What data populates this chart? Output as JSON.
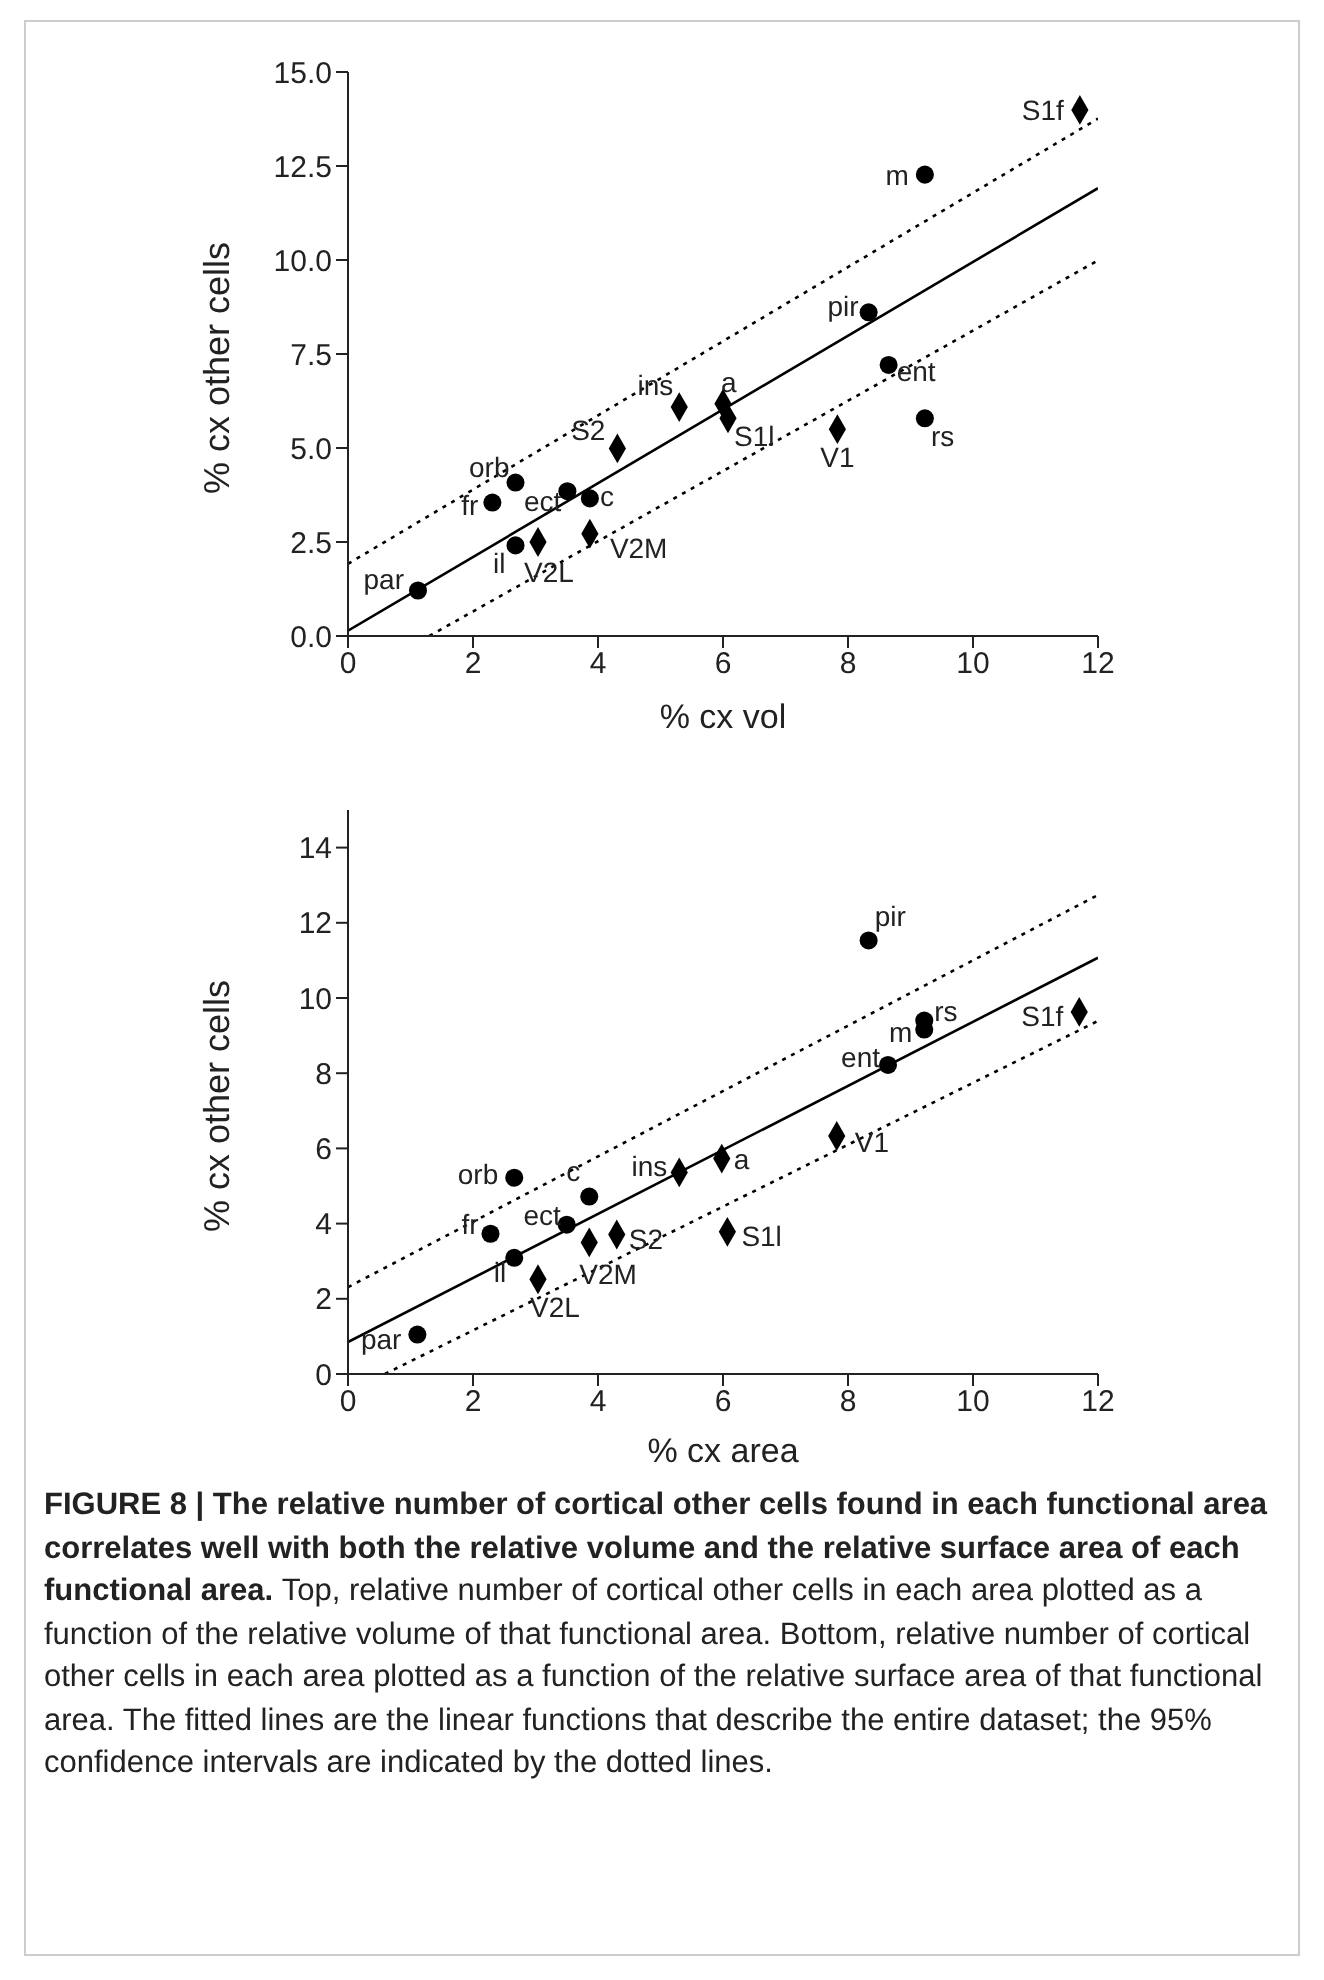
{
  "chart_data": [
    {
      "type": "scatter",
      "xlabel": "% cx vol",
      "ylabel": "% cx other cells",
      "xlim": [
        0,
        12
      ],
      "xticks": [
        0,
        2,
        4,
        6,
        8,
        10,
        12
      ],
      "ylim": [
        0,
        15
      ],
      "yticks": [
        {
          "value": 0,
          "label": "0.0"
        },
        {
          "value": 2.5,
          "label": "2.5"
        },
        {
          "value": 5,
          "label": "5.0"
        },
        {
          "value": 7.5,
          "label": "7.5"
        },
        {
          "value": 10,
          "label": "10.0"
        },
        {
          "value": 12.5,
          "label": "12.5"
        },
        {
          "value": 15,
          "label": "15.0"
        }
      ],
      "series": [
        {
          "type": "scatter",
          "marker": "circle",
          "color": "#000000",
          "x": [
            1.12,
            2.31,
            2.68,
            2.68,
            3.51,
            3.87,
            8.33,
            8.65,
            9.23,
            9.23
          ],
          "values": [
            1.21,
            3.55,
            4.08,
            2.41,
            3.85,
            3.66,
            8.61,
            7.21,
            5.79,
            12.27
          ]
        },
        {
          "type": "scatter",
          "marker": "diamond",
          "color": "#000000",
          "x": [
            3.04,
            3.87,
            4.31,
            5.3,
            6.0,
            6.08,
            7.83,
            11.71
          ],
          "values": [
            2.5,
            2.72,
            4.99,
            6.09,
            6.18,
            5.79,
            5.5,
            13.99
          ]
        },
        {
          "type": "line",
          "marker": "none",
          "line_style": "solid",
          "color": "#000000",
          "x": [
            0,
            12
          ],
          "values": [
            0.14,
            11.91
          ]
        },
        {
          "type": "line",
          "marker": "none",
          "line_style": "dotted",
          "color": "#000000",
          "x": [
            0,
            12
          ],
          "values": [
            1.92,
            13.76
          ]
        },
        {
          "type": "line",
          "marker": "none",
          "line_style": "dotted",
          "color": "#000000",
          "x": [
            1.3,
            12
          ],
          "values": [
            0,
            9.99
          ]
        }
      ],
      "annotations": [
        {
          "text": "par",
          "x": 1.12,
          "y": 1.21
        },
        {
          "text": "fr",
          "x": 2.31,
          "y": 3.55
        },
        {
          "text": "orb",
          "x": 2.68,
          "y": 4.08
        },
        {
          "text": "il",
          "x": 2.68,
          "y": 2.41
        },
        {
          "text": "ect",
          "x": 3.51,
          "y": 3.85
        },
        {
          "text": "c",
          "x": 3.87,
          "y": 3.66
        },
        {
          "text": "pir",
          "x": 8.33,
          "y": 8.61
        },
        {
          "text": "ent",
          "x": 8.65,
          "y": 7.21
        },
        {
          "text": "rs",
          "x": 9.23,
          "y": 5.79
        },
        {
          "text": "m",
          "x": 9.23,
          "y": 12.27
        },
        {
          "text": "V2L",
          "x": 3.04,
          "y": 2.5
        },
        {
          "text": "V2M",
          "x": 3.87,
          "y": 2.72
        },
        {
          "text": "S2",
          "x": 4.31,
          "y": 4.99
        },
        {
          "text": "ins",
          "x": 5.3,
          "y": 6.09
        },
        {
          "text": "a",
          "x": 6.0,
          "y": 6.18
        },
        {
          "text": "S1l",
          "x": 6.08,
          "y": 5.79
        },
        {
          "text": "V1",
          "x": 7.83,
          "y": 5.5
        },
        {
          "text": "S1f",
          "x": 11.71,
          "y": 13.99
        }
      ]
    },
    {
      "type": "scatter",
      "xlabel": "% cx area",
      "ylabel": "% cx other cells",
      "xlim": [
        0,
        12
      ],
      "xticks": [
        0,
        2,
        4,
        6,
        8,
        10,
        12
      ],
      "ylim": [
        0,
        15
      ],
      "yticks": [
        0,
        2,
        4,
        6,
        8,
        10,
        12,
        14
      ],
      "series": [
        {
          "type": "scatter",
          "marker": "circle",
          "color": "#000000",
          "x": [
            1.11,
            2.28,
            2.66,
            2.66,
            3.5,
            3.86,
            8.33,
            8.64,
            9.22,
            9.22
          ],
          "values": [
            1.05,
            3.73,
            5.22,
            3.09,
            3.97,
            4.72,
            11.53,
            8.22,
            9.4,
            9.16
          ]
        },
        {
          "type": "scatter",
          "marker": "diamond",
          "color": "#000000",
          "x": [
            3.04,
            3.86,
            4.3,
            5.3,
            5.98,
            6.07,
            7.82,
            11.7
          ],
          "values": [
            2.52,
            3.5,
            3.71,
            5.36,
            5.73,
            3.78,
            6.33,
            9.63
          ]
        },
        {
          "type": "line",
          "marker": "none",
          "line_style": "solid",
          "color": "#000000",
          "x": [
            0,
            12
          ],
          "values": [
            0.85,
            11.07
          ]
        },
        {
          "type": "line",
          "marker": "none",
          "line_style": "dotted",
          "color": "#000000",
          "x": [
            0,
            12
          ],
          "values": [
            2.31,
            12.74
          ]
        },
        {
          "type": "line",
          "marker": "none",
          "line_style": "dotted",
          "color": "#000000",
          "x": [
            0.59,
            12
          ],
          "values": [
            0,
            9.39
          ]
        }
      ],
      "annotations": [
        {
          "text": "par",
          "x": 1.11,
          "y": 1.05
        },
        {
          "text": "fr",
          "x": 2.28,
          "y": 3.73
        },
        {
          "text": "orb",
          "x": 2.66,
          "y": 5.22
        },
        {
          "text": "il",
          "x": 2.66,
          "y": 3.09
        },
        {
          "text": "ect",
          "x": 3.5,
          "y": 3.97
        },
        {
          "text": "c",
          "x": 3.86,
          "y": 4.72
        },
        {
          "text": "pir",
          "x": 8.33,
          "y": 11.53
        },
        {
          "text": "ent",
          "x": 8.64,
          "y": 8.22
        },
        {
          "text": "rs",
          "x": 9.22,
          "y": 9.4
        },
        {
          "text": "m",
          "x": 9.22,
          "y": 9.16
        },
        {
          "text": "V2L",
          "x": 3.04,
          "y": 2.52
        },
        {
          "text": "V2M",
          "x": 3.86,
          "y": 3.5
        },
        {
          "text": "S2",
          "x": 4.3,
          "y": 3.71
        },
        {
          "text": "ins",
          "x": 5.3,
          "y": 5.36
        },
        {
          "text": "a",
          "x": 5.98,
          "y": 5.73
        },
        {
          "text": "S1l",
          "x": 6.07,
          "y": 3.78
        },
        {
          "text": "V1",
          "x": 7.82,
          "y": 6.33
        },
        {
          "text": "S1f",
          "x": 11.7,
          "y": 9.63
        },
        "FIGURE 8 | The relative number of cortical other cells found in each functional area correlates well with both the relative volume and the relative surface area of each functional area.",
        "Top, relative number of cortical other cells in each area plotted as a function of the relative volume of that functional area. Bottom, relative number of cortical other cells in each area plotted as a function of the relative surface area of that functional area. The fitted lines are the linear functions that describe the entire dataset; the 95% confidence intervals are indicated by the dotted lines."
      ]
    }
  ]
}
